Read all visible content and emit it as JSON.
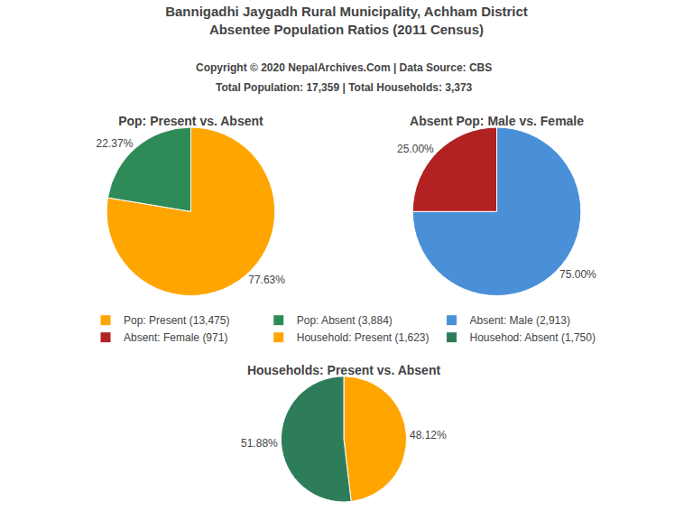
{
  "title": [
    "Bannigadhi Jaygadh Rural Municipality, Achham District",
    "Absentee Population Ratios (2011 Census)"
  ],
  "subtitle": [
    "Copyright © 2020 NepalArchives.Com | Data Source: CBS",
    "Total Population: 17,359 | Total Households: 3,373"
  ],
  "chart_data": [
    {
      "type": "pie",
      "title": "Pop: Present vs. Absent",
      "categories": [
        "Pop: Present (13,475)",
        "Pop: Absent (3,884)"
      ],
      "values": [
        77.63,
        22.37
      ],
      "value_labels": [
        "77.63%",
        "22.37%"
      ],
      "colors": [
        "#FFA500",
        "#2E8B57"
      ],
      "data_labels": true,
      "legend": "center"
    },
    {
      "type": "pie",
      "title": "Absent Pop: Male vs. Female",
      "categories": [
        "Absent: Male (2,913)",
        "Absent: Female (971)"
      ],
      "values": [
        75.0,
        25.0
      ],
      "value_labels": [
        "75.00%",
        "25.00%"
      ],
      "colors": [
        "#4A90D9",
        "#B22222"
      ],
      "data_labels": true,
      "legend": "center"
    },
    {
      "type": "pie",
      "title": "Households: Present vs. Absent",
      "categories": [
        "Household: Present (1,623)",
        "Househod: Absent (1,750)"
      ],
      "values": [
        48.12,
        51.88
      ],
      "value_labels": [
        "48.12%",
        "51.88%"
      ],
      "colors": [
        "#FFA500",
        "#2E7D5A"
      ],
      "data_labels": true,
      "legend": "center"
    }
  ]
}
